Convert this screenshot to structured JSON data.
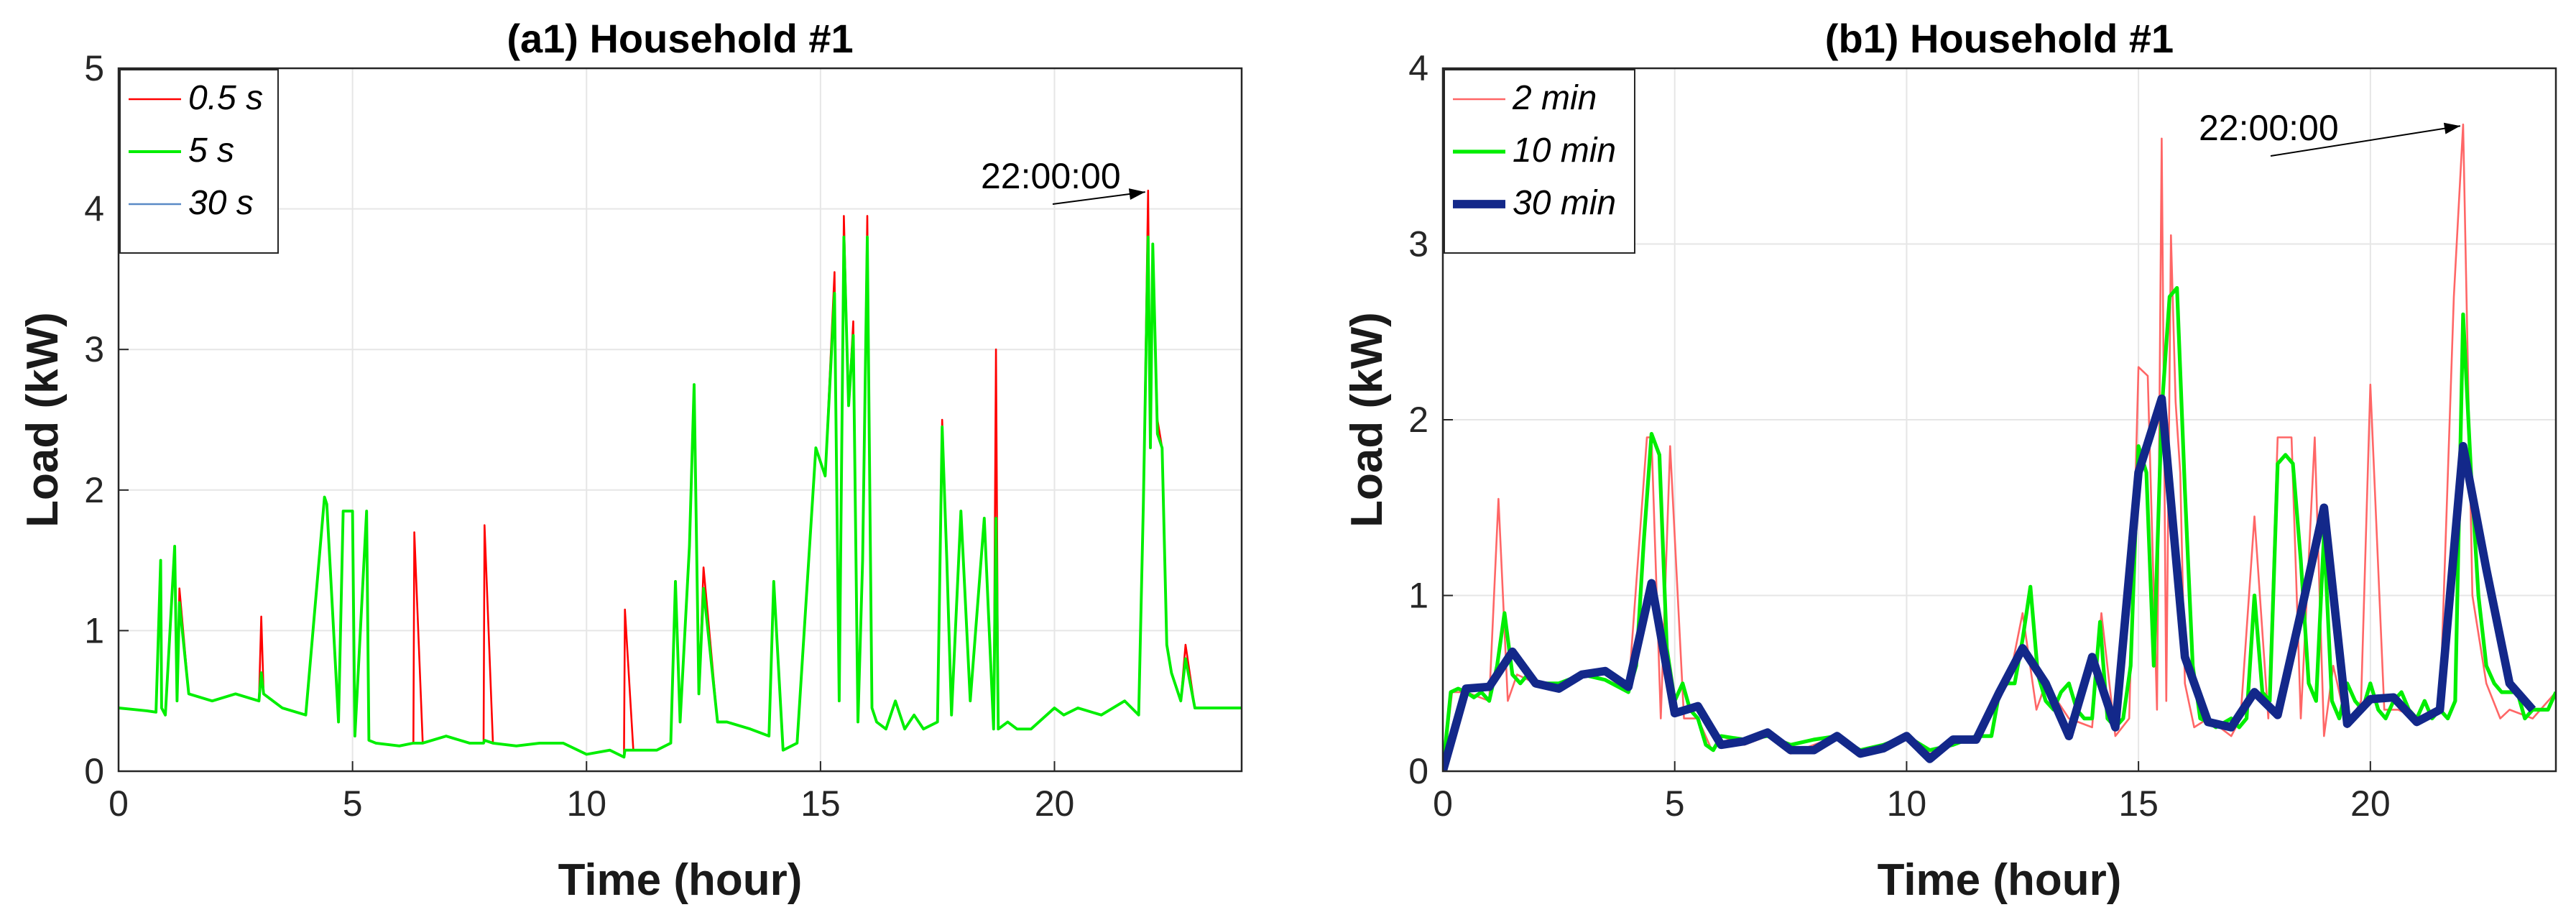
{
  "chart_data": [
    {
      "id": "a1",
      "type": "line",
      "title": "(a1) Household #1",
      "xlabel": "Time (hour)",
      "ylabel": "Load (kW)",
      "xlim": [
        0,
        24
      ],
      "ylim": [
        0,
        5
      ],
      "xticks": [
        0,
        5,
        10,
        15,
        20
      ],
      "yticks": [
        0,
        1,
        2,
        3,
        4,
        5
      ],
      "grid": true,
      "legend_position": "top-left",
      "annotation": {
        "text": "22:00:00",
        "x": 22.0,
        "y": 4.13
      },
      "series": [
        {
          "name": "0.5 s",
          "color": "#ff0000",
          "width": 2,
          "x": [
            0,
            0.3,
            0.6,
            0.8,
            0.9,
            0.92,
            1.0,
            1.2,
            1.25,
            1.3,
            1.5,
            2.0,
            2.5,
            3.0,
            3.05,
            3.1,
            3.5,
            4.0,
            4.4,
            4.45,
            4.7,
            4.8,
            5.0,
            5.05,
            5.3,
            5.35,
            5.5,
            6.0,
            6.3,
            6.32,
            6.5,
            7.0,
            7.5,
            7.8,
            7.82,
            8.0,
            8.5,
            9.0,
            9.5,
            10.0,
            10.5,
            10.8,
            10.82,
            11.0,
            11.5,
            11.8,
            11.9,
            12.0,
            12.2,
            12.3,
            12.4,
            12.5,
            12.8,
            13.0,
            13.5,
            13.9,
            14.0,
            14.2,
            14.5,
            14.9,
            15.0,
            15.1,
            15.3,
            15.4,
            15.5,
            15.6,
            15.7,
            15.8,
            15.9,
            16.0,
            16.1,
            16.2,
            16.4,
            16.6,
            16.8,
            17.0,
            17.2,
            17.5,
            17.6,
            17.7,
            17.8,
            18.0,
            18.2,
            18.5,
            18.7,
            18.75,
            18.8,
            19.0,
            19.2,
            19.5,
            20.0,
            20.2,
            20.5,
            21.0,
            21.5,
            21.8,
            21.9,
            22.0,
            22.05,
            22.1,
            22.2,
            22.3,
            22.4,
            22.5,
            22.7,
            22.8,
            23.0,
            23.5,
            24.0
          ],
          "y": [
            0.45,
            0.44,
            0.43,
            0.42,
            1.5,
            0.45,
            0.4,
            1.6,
            0.5,
            1.3,
            0.55,
            0.5,
            0.55,
            0.5,
            1.1,
            0.55,
            0.45,
            0.4,
            1.95,
            1.9,
            0.35,
            1.85,
            1.85,
            0.25,
            1.85,
            0.22,
            0.2,
            0.18,
            0.2,
            1.7,
            0.2,
            0.25,
            0.2,
            0.2,
            1.75,
            0.2,
            0.18,
            0.2,
            0.2,
            0.12,
            0.15,
            0.1,
            1.15,
            0.15,
            0.15,
            0.2,
            1.35,
            0.35,
            1.6,
            2.7,
            0.55,
            1.45,
            0.35,
            0.35,
            0.3,
            0.25,
            1.35,
            0.15,
            0.2,
            2.3,
            2.2,
            2.1,
            3.55,
            0.5,
            3.95,
            2.6,
            3.2,
            0.35,
            1.5,
            3.95,
            0.45,
            0.35,
            0.3,
            0.5,
            0.3,
            0.4,
            0.3,
            0.35,
            2.5,
            1.5,
            0.4,
            1.85,
            0.5,
            1.8,
            0.3,
            3.0,
            0.3,
            0.35,
            0.3,
            0.3,
            0.45,
            0.4,
            0.45,
            0.4,
            0.5,
            0.4,
            1.9,
            4.13,
            2.3,
            3.7,
            2.5,
            2.3,
            0.9,
            0.7,
            0.5,
            0.9,
            0.45,
            0.45,
            0.45
          ]
        },
        {
          "name": "5 s",
          "color": "#00ee00",
          "width": 3,
          "x": [
            0,
            0.3,
            0.6,
            0.8,
            0.9,
            0.92,
            1.0,
            1.2,
            1.25,
            1.3,
            1.5,
            2.0,
            2.5,
            3.0,
            3.05,
            3.1,
            3.5,
            4.0,
            4.4,
            4.45,
            4.7,
            4.8,
            5.0,
            5.05,
            5.3,
            5.35,
            5.5,
            6.0,
            6.3,
            6.32,
            6.5,
            7.0,
            7.5,
            7.8,
            7.82,
            8.0,
            8.5,
            9.0,
            9.5,
            10.0,
            10.5,
            10.8,
            10.82,
            11.0,
            11.5,
            11.8,
            11.9,
            12.0,
            12.2,
            12.3,
            12.4,
            12.5,
            12.8,
            13.0,
            13.5,
            13.9,
            14.0,
            14.2,
            14.5,
            14.9,
            15.0,
            15.1,
            15.3,
            15.4,
            15.5,
            15.6,
            15.7,
            15.8,
            15.9,
            16.0,
            16.1,
            16.2,
            16.4,
            16.6,
            16.8,
            17.0,
            17.2,
            17.5,
            17.6,
            17.7,
            17.8,
            18.0,
            18.2,
            18.5,
            18.7,
            18.75,
            18.8,
            19.0,
            19.2,
            19.5,
            20.0,
            20.2,
            20.5,
            21.0,
            21.5,
            21.8,
            21.9,
            22.0,
            22.05,
            22.1,
            22.2,
            22.3,
            22.4,
            22.5,
            22.7,
            22.8,
            23.0,
            23.5,
            24.0
          ],
          "y": [
            0.45,
            0.44,
            0.43,
            0.42,
            1.5,
            0.45,
            0.4,
            1.6,
            0.5,
            1.2,
            0.55,
            0.5,
            0.55,
            0.5,
            0.7,
            0.55,
            0.45,
            0.4,
            1.95,
            1.9,
            0.35,
            1.85,
            1.85,
            0.25,
            1.85,
            0.22,
            0.2,
            0.18,
            0.2,
            0.2,
            0.2,
            0.25,
            0.2,
            0.2,
            0.22,
            0.2,
            0.18,
            0.2,
            0.2,
            0.12,
            0.15,
            0.1,
            0.15,
            0.15,
            0.15,
            0.2,
            1.35,
            0.35,
            1.6,
            2.75,
            0.55,
            1.3,
            0.35,
            0.35,
            0.3,
            0.25,
            1.35,
            0.15,
            0.2,
            2.3,
            2.2,
            2.1,
            3.4,
            0.5,
            3.8,
            2.6,
            3.1,
            0.35,
            1.5,
            3.8,
            0.45,
            0.35,
            0.3,
            0.5,
            0.3,
            0.4,
            0.3,
            0.35,
            2.45,
            1.5,
            0.4,
            1.85,
            0.5,
            1.8,
            0.3,
            1.8,
            0.3,
            0.35,
            0.3,
            0.3,
            0.45,
            0.4,
            0.45,
            0.4,
            0.5,
            0.4,
            1.9,
            3.8,
            2.3,
            3.75,
            2.4,
            2.3,
            0.9,
            0.7,
            0.5,
            0.8,
            0.45,
            0.45,
            0.45
          ]
        },
        {
          "name": "30 s",
          "color": "#5a8ac6",
          "width": 2,
          "x": [],
          "y": []
        }
      ]
    },
    {
      "id": "b1",
      "type": "line",
      "title": "(b1) Household #1",
      "xlabel": "Time (hour)",
      "ylabel": "Load (kW)",
      "xlim": [
        0,
        24
      ],
      "ylim": [
        0,
        4
      ],
      "xticks": [
        0,
        5,
        10,
        15,
        20
      ],
      "yticks": [
        0,
        1,
        2,
        3,
        4
      ],
      "grid": true,
      "legend_position": "top-left",
      "annotation": {
        "text": "22:00:00",
        "x": 22.0,
        "y": 3.68
      },
      "series": [
        {
          "name": "2 min",
          "color": "#ff6666",
          "width": 2,
          "x": [
            0,
            0.2,
            0.5,
            1.0,
            1.2,
            1.4,
            1.6,
            2.0,
            2.5,
            3.0,
            3.5,
            4.0,
            4.4,
            4.5,
            4.7,
            4.9,
            5.2,
            5.5,
            5.8,
            6.0,
            6.5,
            7.0,
            7.5,
            8.0,
            8.5,
            9.0,
            9.5,
            10.0,
            10.5,
            11.0,
            11.5,
            12.0,
            12.2,
            12.5,
            12.8,
            13.0,
            13.5,
            14.0,
            14.2,
            14.5,
            14.8,
            15.0,
            15.2,
            15.4,
            15.5,
            15.6,
            15.7,
            15.8,
            15.9,
            16.0,
            16.2,
            16.5,
            17.0,
            17.2,
            17.5,
            17.8,
            18.0,
            18.3,
            18.5,
            18.8,
            19.0,
            19.2,
            19.5,
            19.8,
            20.0,
            20.3,
            20.6,
            21.0,
            21.5,
            21.8,
            22.0,
            22.2,
            22.5,
            22.8,
            23.0,
            23.5,
            24.0
          ],
          "y": [
            0.0,
            0.45,
            0.45,
            0.4,
            1.55,
            0.4,
            0.55,
            0.5,
            0.5,
            0.55,
            0.55,
            0.45,
            1.9,
            1.9,
            0.3,
            1.85,
            0.3,
            0.3,
            0.12,
            0.2,
            0.15,
            0.2,
            0.1,
            0.15,
            0.2,
            0.1,
            0.15,
            0.2,
            0.1,
            0.15,
            0.2,
            0.45,
            0.5,
            0.9,
            0.35,
            0.5,
            0.3,
            0.25,
            0.9,
            0.2,
            0.3,
            2.3,
            2.25,
            0.35,
            3.6,
            0.4,
            3.05,
            2.1,
            1.7,
            0.5,
            0.25,
            0.3,
            0.2,
            0.3,
            1.45,
            0.3,
            1.9,
            1.9,
            0.3,
            1.9,
            0.2,
            0.6,
            0.25,
            0.4,
            2.2,
            0.35,
            0.35,
            0.3,
            0.35,
            2.7,
            3.68,
            1.0,
            0.5,
            0.3,
            0.35,
            0.3,
            0.45
          ]
        },
        {
          "name": "10 min",
          "color": "#00ee00",
          "width": 4,
          "x": [
            0,
            0.17,
            0.33,
            0.5,
            0.67,
            0.83,
            1.0,
            1.17,
            1.33,
            1.5,
            1.67,
            1.83,
            2.0,
            2.5,
            3.0,
            3.5,
            4.0,
            4.17,
            4.33,
            4.5,
            4.67,
            4.83,
            5.0,
            5.17,
            5.33,
            5.5,
            5.67,
            5.83,
            6.0,
            6.5,
            7.0,
            7.5,
            8.0,
            8.5,
            9.0,
            9.5,
            10.0,
            10.5,
            11.0,
            11.5,
            11.83,
            12.0,
            12.17,
            12.33,
            12.5,
            12.67,
            12.83,
            13.0,
            13.17,
            13.33,
            13.5,
            13.67,
            13.83,
            14.0,
            14.17,
            14.33,
            14.5,
            14.67,
            14.83,
            15.0,
            15.17,
            15.33,
            15.5,
            15.67,
            15.83,
            16.0,
            16.17,
            16.33,
            16.5,
            16.67,
            17.0,
            17.17,
            17.33,
            17.5,
            17.67,
            17.83,
            18.0,
            18.17,
            18.33,
            18.5,
            18.67,
            18.83,
            19.0,
            19.17,
            19.33,
            19.5,
            19.67,
            19.83,
            20.0,
            20.17,
            20.33,
            20.5,
            20.67,
            20.83,
            21.0,
            21.17,
            21.33,
            21.5,
            21.67,
            21.83,
            22.0,
            22.17,
            22.33,
            22.5,
            22.67,
            22.83,
            23.0,
            23.17,
            23.33,
            23.5,
            23.67,
            23.83,
            24.0
          ],
          "y": [
            0.0,
            0.45,
            0.47,
            0.45,
            0.42,
            0.45,
            0.4,
            0.6,
            0.9,
            0.55,
            0.5,
            0.55,
            0.5,
            0.5,
            0.55,
            0.52,
            0.45,
            0.6,
            1.3,
            1.92,
            1.8,
            0.7,
            0.4,
            0.5,
            0.35,
            0.3,
            0.15,
            0.12,
            0.2,
            0.18,
            0.2,
            0.15,
            0.18,
            0.2,
            0.12,
            0.15,
            0.2,
            0.12,
            0.15,
            0.2,
            0.2,
            0.45,
            0.5,
            0.5,
            0.75,
            1.05,
            0.55,
            0.4,
            0.35,
            0.45,
            0.5,
            0.35,
            0.3,
            0.3,
            0.85,
            0.3,
            0.25,
            0.3,
            0.6,
            1.85,
            1.7,
            0.6,
            2.05,
            2.7,
            2.75,
            1.6,
            0.6,
            0.3,
            0.28,
            0.25,
            0.3,
            0.25,
            0.3,
            1.0,
            0.45,
            0.4,
            1.75,
            1.8,
            1.75,
            1.2,
            0.5,
            0.4,
            1.35,
            0.4,
            0.3,
            0.5,
            0.4,
            0.35,
            0.5,
            0.35,
            0.3,
            0.4,
            0.45,
            0.35,
            0.3,
            0.4,
            0.3,
            0.35,
            0.3,
            0.4,
            2.6,
            1.7,
            1.0,
            0.6,
            0.5,
            0.45,
            0.45,
            0.45,
            0.3,
            0.35,
            0.35,
            0.35,
            0.45
          ]
        },
        {
          "name": "30 min",
          "color": "#13288a",
          "width": 9,
          "x": [
            0,
            0.5,
            1.0,
            1.5,
            2.0,
            2.5,
            3.0,
            3.5,
            4.0,
            4.5,
            5.0,
            5.5,
            6.0,
            6.5,
            7.0,
            7.5,
            8.0,
            8.5,
            9.0,
            9.5,
            10.0,
            10.5,
            11.0,
            11.5,
            12.0,
            12.5,
            13.0,
            13.5,
            14.0,
            14.5,
            15.0,
            15.5,
            16.0,
            16.5,
            17.0,
            17.5,
            18.0,
            18.5,
            19.0,
            19.5,
            20.0,
            20.5,
            21.0,
            21.5,
            22.0,
            22.5,
            23.0,
            23.5
          ],
          "y": [
            0.0,
            0.47,
            0.48,
            0.68,
            0.5,
            0.47,
            0.55,
            0.57,
            0.48,
            1.07,
            0.33,
            0.37,
            0.15,
            0.17,
            0.22,
            0.12,
            0.12,
            0.2,
            0.1,
            0.13,
            0.2,
            0.07,
            0.18,
            0.18,
            0.45,
            0.7,
            0.5,
            0.2,
            0.65,
            0.25,
            1.7,
            2.12,
            0.65,
            0.28,
            0.25,
            0.45,
            0.32,
            0.9,
            1.5,
            0.27,
            0.41,
            0.42,
            0.28,
            0.35,
            1.85,
            1.15,
            0.5,
            0.35
          ]
        }
      ]
    }
  ]
}
